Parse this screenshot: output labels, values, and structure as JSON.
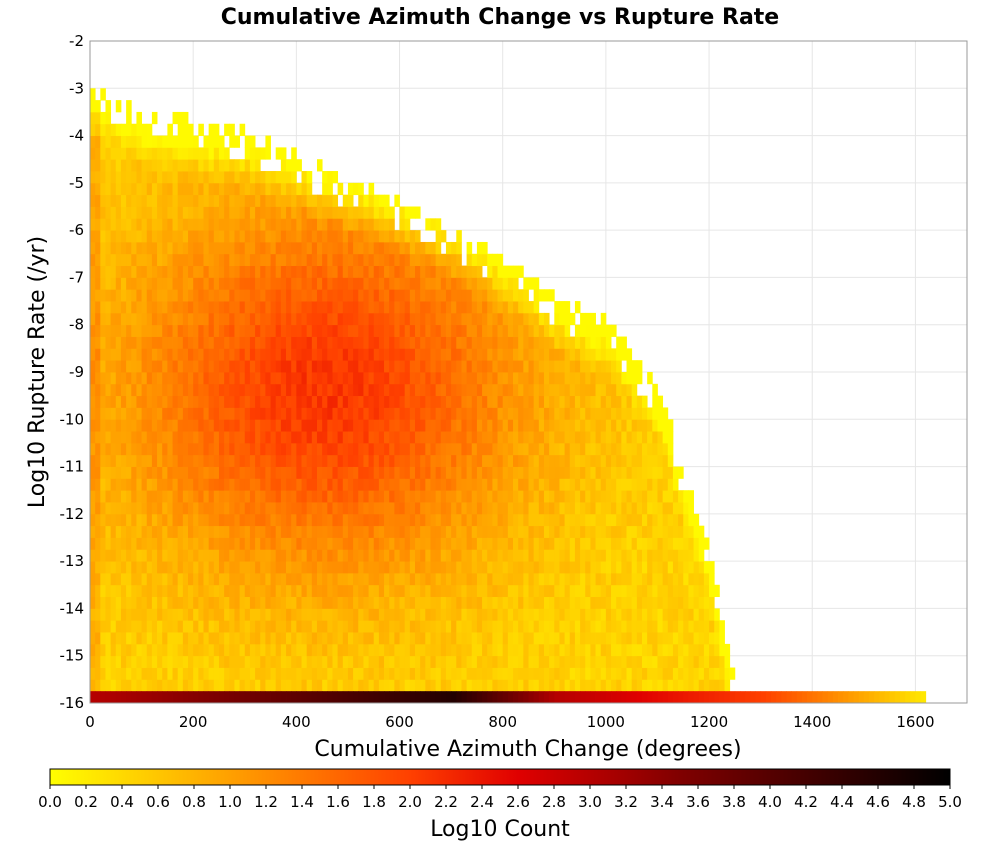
{
  "chart_data": {
    "type": "heatmap",
    "title": "Cumulative Azimuth Change vs Rupture Rate",
    "xlabel": "Cumulative Azimuth Change (degrees)",
    "ylabel": "Log10 Rupture Rate (/yr)",
    "xlim": [
      0,
      1700
    ],
    "ylim": [
      -16,
      -2
    ],
    "x_ticks": [
      0,
      200,
      400,
      600,
      800,
      1000,
      1200,
      1400,
      1600
    ],
    "y_ticks": [
      -2,
      -3,
      -4,
      -5,
      -6,
      -7,
      -8,
      -9,
      -10,
      -11,
      -12,
      -13,
      -14,
      -15,
      -16
    ],
    "x_bin_width": 10,
    "y_bin_width": 0.25,
    "grid": true,
    "colorbar": {
      "label": "Log10 Count",
      "range": [
        0.0,
        5.0
      ],
      "ticks": [
        "0.0",
        "0.2",
        "0.4",
        "0.6",
        "0.8",
        "1.0",
        "1.2",
        "1.4",
        "1.6",
        "1.8",
        "2.0",
        "2.2",
        "2.4",
        "2.6",
        "2.8",
        "3.0",
        "3.2",
        "3.4",
        "3.6",
        "3.8",
        "4.0",
        "4.2",
        "4.4",
        "4.6",
        "4.8",
        "5.0"
      ],
      "colors": [
        "#ffff00",
        "#ffa000",
        "#ff4000",
        "#e00000",
        "#800000",
        "#000000"
      ],
      "stops": [
        0.0,
        1.0,
        2.0,
        2.6,
        3.5,
        5.0
      ]
    },
    "description": "2D histogram density; peak log10 count ~2.1 near x≈450 deg, y≈-9.5; edge of populated region decreases from y≈-3 at x=0 to y≈-16 at x≈1200; bottom row (y=-16) extends to x≈1620 with values up to ~4.6"
  }
}
